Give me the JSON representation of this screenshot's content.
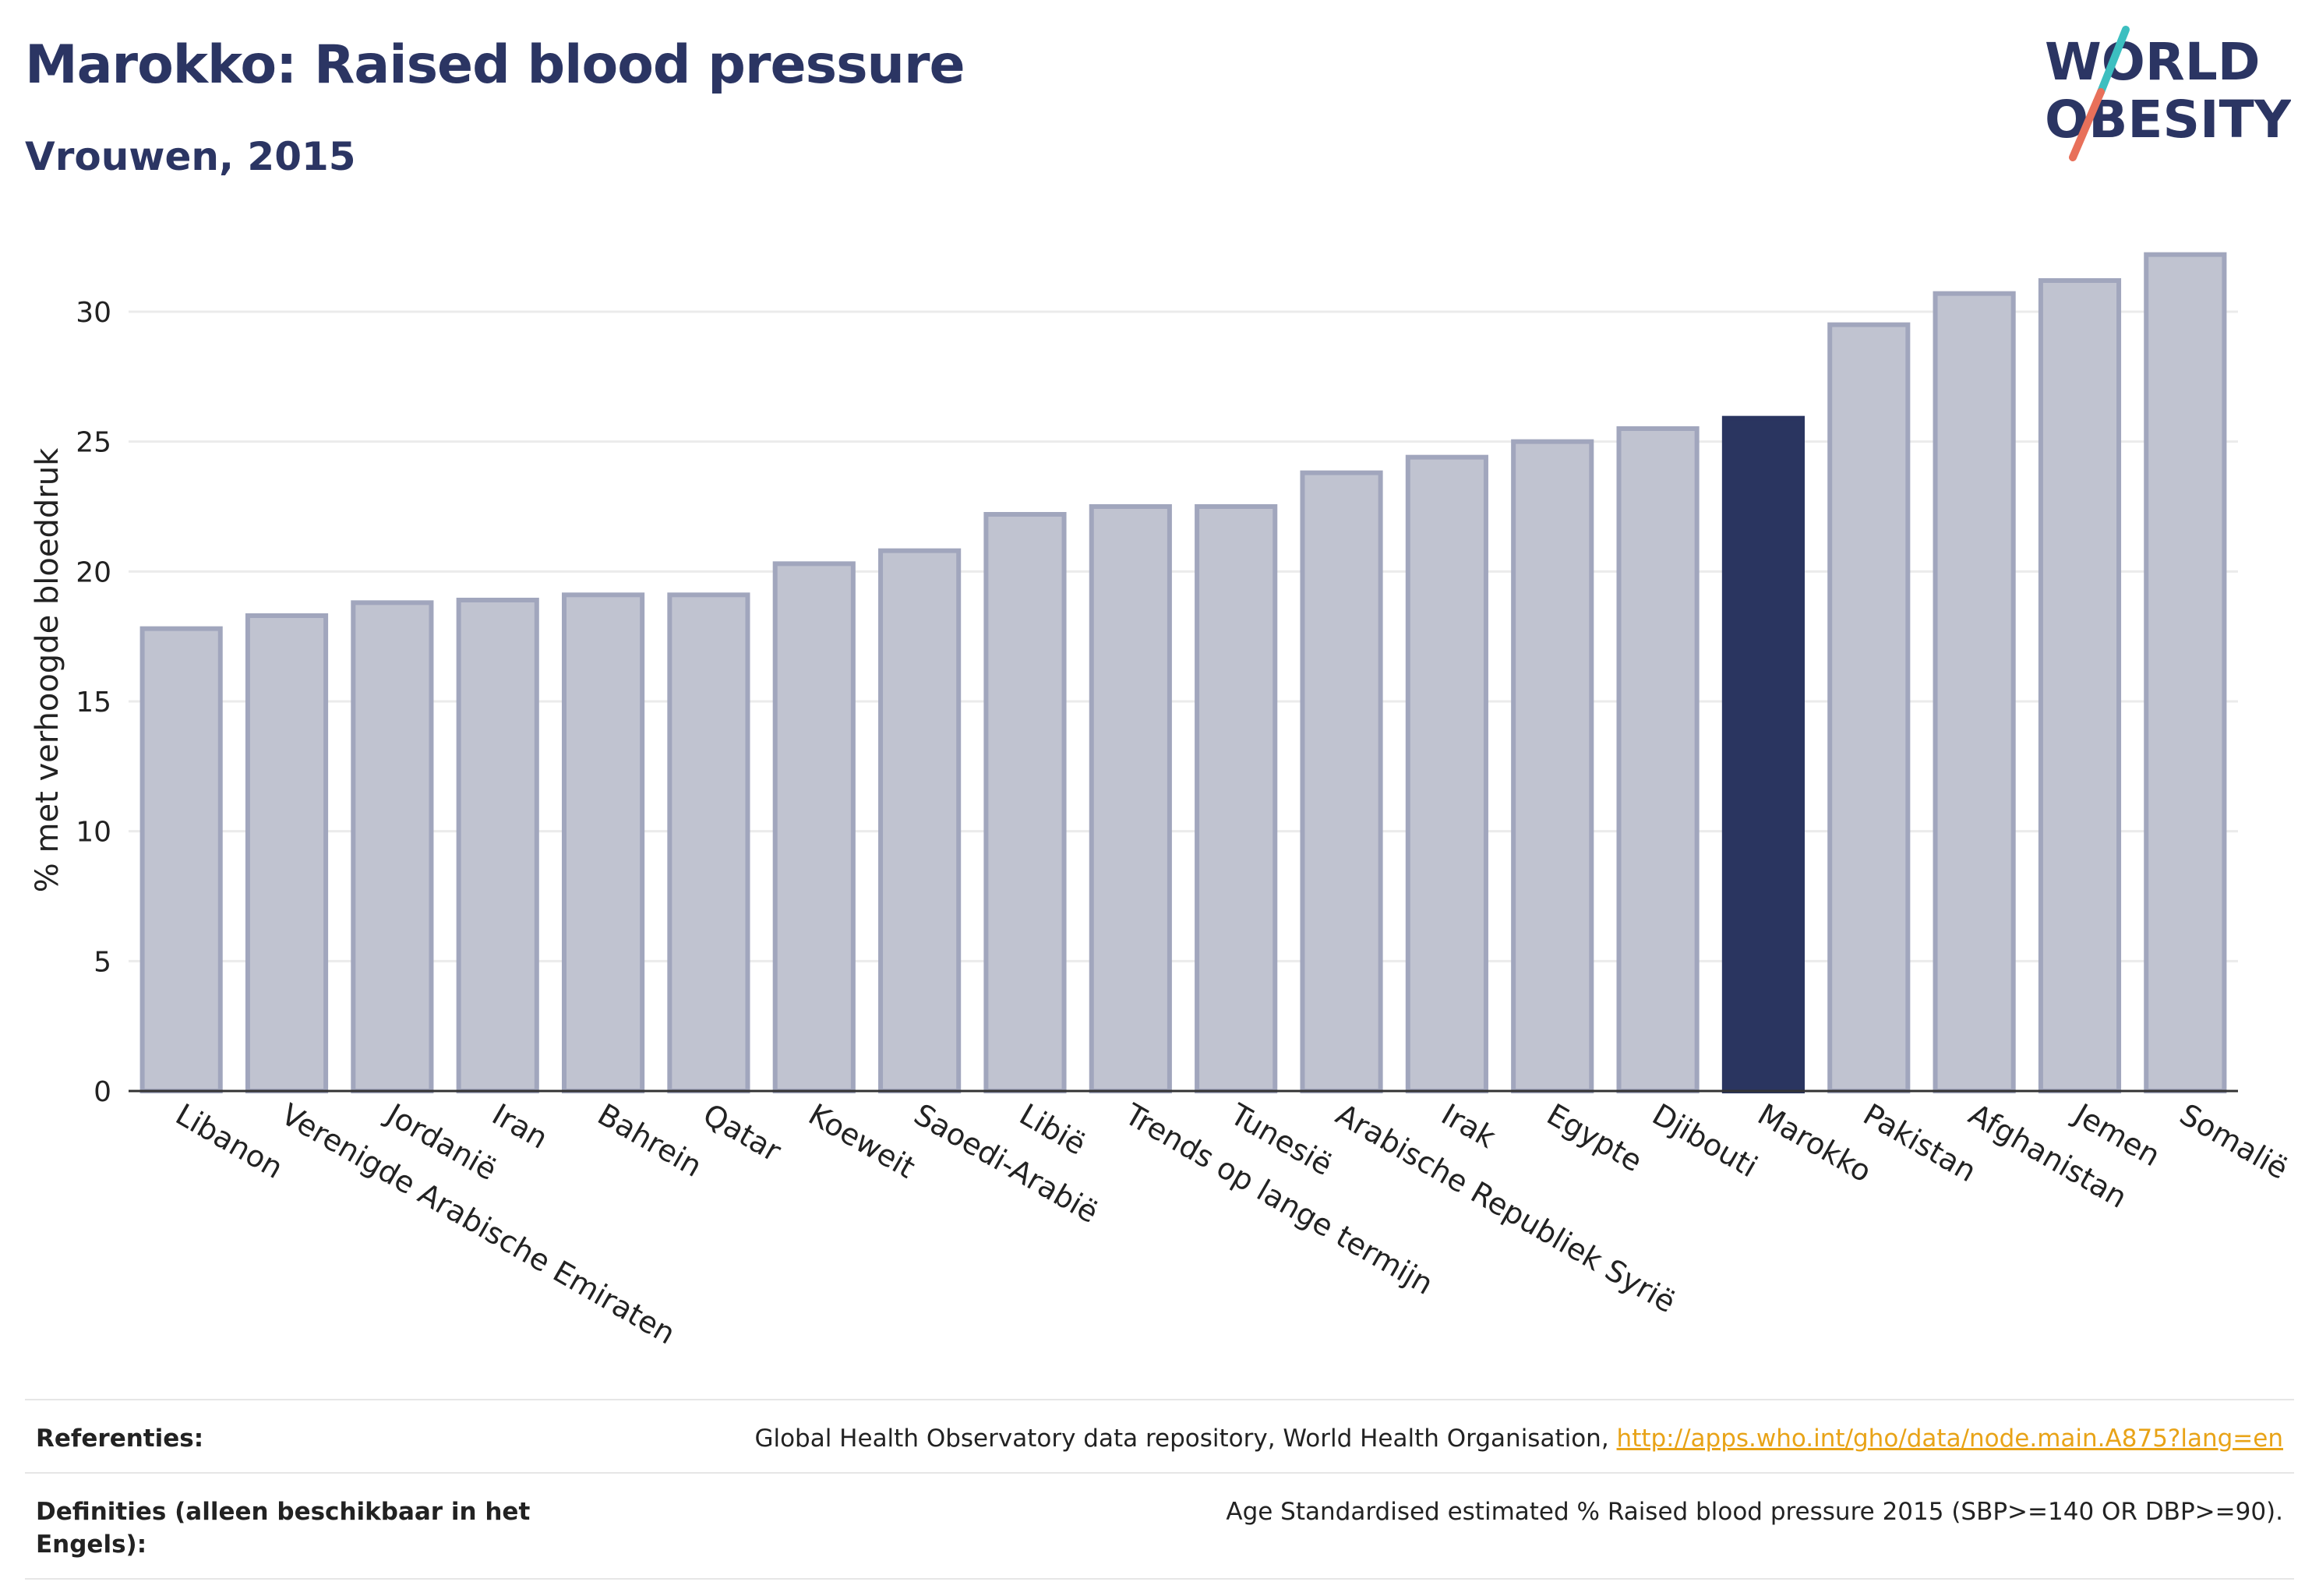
{
  "header": {
    "title": "Marokko: Raised blood pressure",
    "subtitle": "Vrouwen, 2015"
  },
  "logo": {
    "line1": "WORLD",
    "line2": "OBESITY",
    "color_text": "#2b3563",
    "color_slash_top": "#3cbfc0",
    "color_slash_bottom": "#e8705a"
  },
  "colors": {
    "bar_default": "#c0c3d0",
    "bar_default_stroke": "#a1a6bd",
    "bar_highlight": "#2a3560",
    "grid": "#ebebeb"
  },
  "chart_data": {
    "type": "bar",
    "ylabel": "% met verhoogde bloeddruk",
    "ylim": [
      0,
      33
    ],
    "yticks": [
      0,
      5,
      10,
      15,
      20,
      25,
      30
    ],
    "grid": true,
    "highlight": "Marokko",
    "categories": [
      "Libanon",
      "Verenigde Arabische Emiraten",
      "Jordanië",
      "Iran",
      "Bahrein",
      "Qatar",
      "Koeweit",
      "Saoedi-Arabië",
      "Libië",
      "Trends op lange termijn",
      "Tunesië",
      "Arabische Republiek Syrië",
      "Irak",
      "Egypte",
      "Djibouti",
      "Marokko",
      "Pakistan",
      "Afghanistan",
      "Jemen",
      "Somalië"
    ],
    "values": [
      17.8,
      18.3,
      18.8,
      18.9,
      19.1,
      19.1,
      20.3,
      20.8,
      22.2,
      22.5,
      22.5,
      23.8,
      24.4,
      25.0,
      25.5,
      25.9,
      29.5,
      30.7,
      31.2,
      32.2
    ]
  },
  "footer": {
    "references_label": "Referenties:",
    "references_text": "Global Health Observatory data repository, World Health Organisation, ",
    "references_link": "http://apps.who.int/gho/data/node.main.A875?lang=en",
    "definitions_label": "Definities (alleen beschikbaar in het Engels):",
    "definitions_text": "Age Standardised estimated % Raised blood pressure 2015 (SBP>=140 OR DBP>=90)."
  }
}
